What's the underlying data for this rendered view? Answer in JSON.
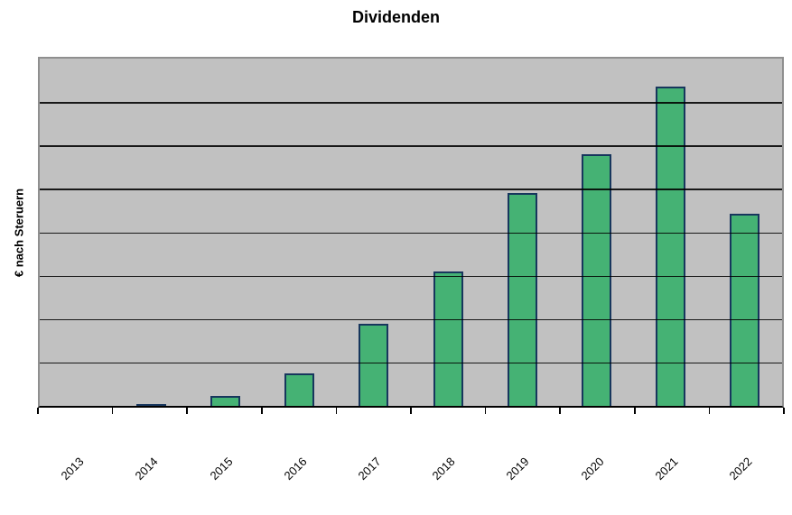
{
  "chart_data": {
    "type": "bar",
    "title": "Dividenden",
    "ylabel": "€ nach Steruern",
    "xlabel": "",
    "categories": [
      "2013",
      "2014",
      "2015",
      "2016",
      "2017",
      "2018",
      "2019",
      "2020",
      "2021",
      "2022"
    ],
    "values": [
      0,
      0.05,
      0.22,
      0.74,
      1.9,
      3.09,
      4.9,
      5.8,
      7.36,
      4.43
    ],
    "y_axis_units": "unlabeled axis; values estimated in horizontal-gridline intervals",
    "ylim": [
      0,
      8
    ],
    "y_tick_labels": [],
    "gridlines": "horizontal, drawn over bars",
    "legend_position": "none",
    "colors": {
      "bar_fill": "#45b274",
      "bar_border": "#17365d",
      "plot_background": "#c1c1c1",
      "plot_border": "#8f8f8f",
      "gridline": "#000000",
      "axis": "#000000",
      "page_background": "#ffffff",
      "text": "#000000"
    }
  }
}
